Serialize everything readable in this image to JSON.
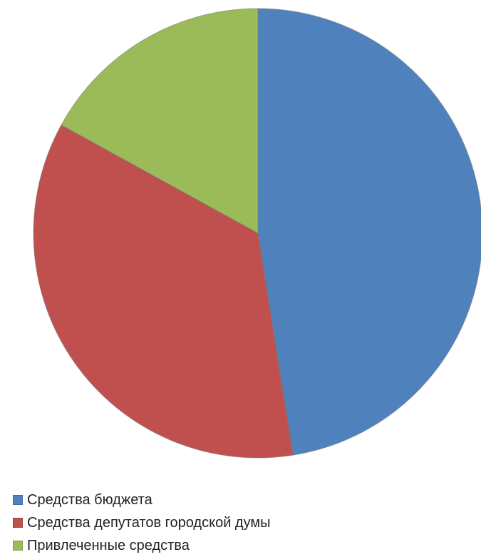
{
  "chart_data": {
    "type": "pie",
    "title": "",
    "start_angle_deg": 0,
    "direction": "clockwise",
    "legend_position": "bottom-left",
    "series": [
      {
        "name": "Средства бюджета",
        "value": 47.5,
        "color": "#4F81BD"
      },
      {
        "name": "Средства депутатов городской думы",
        "value": 35.5,
        "color": "#C0504D"
      },
      {
        "name": "Привлеченные средства",
        "value": 17.0,
        "color": "#9BBB59"
      }
    ]
  }
}
